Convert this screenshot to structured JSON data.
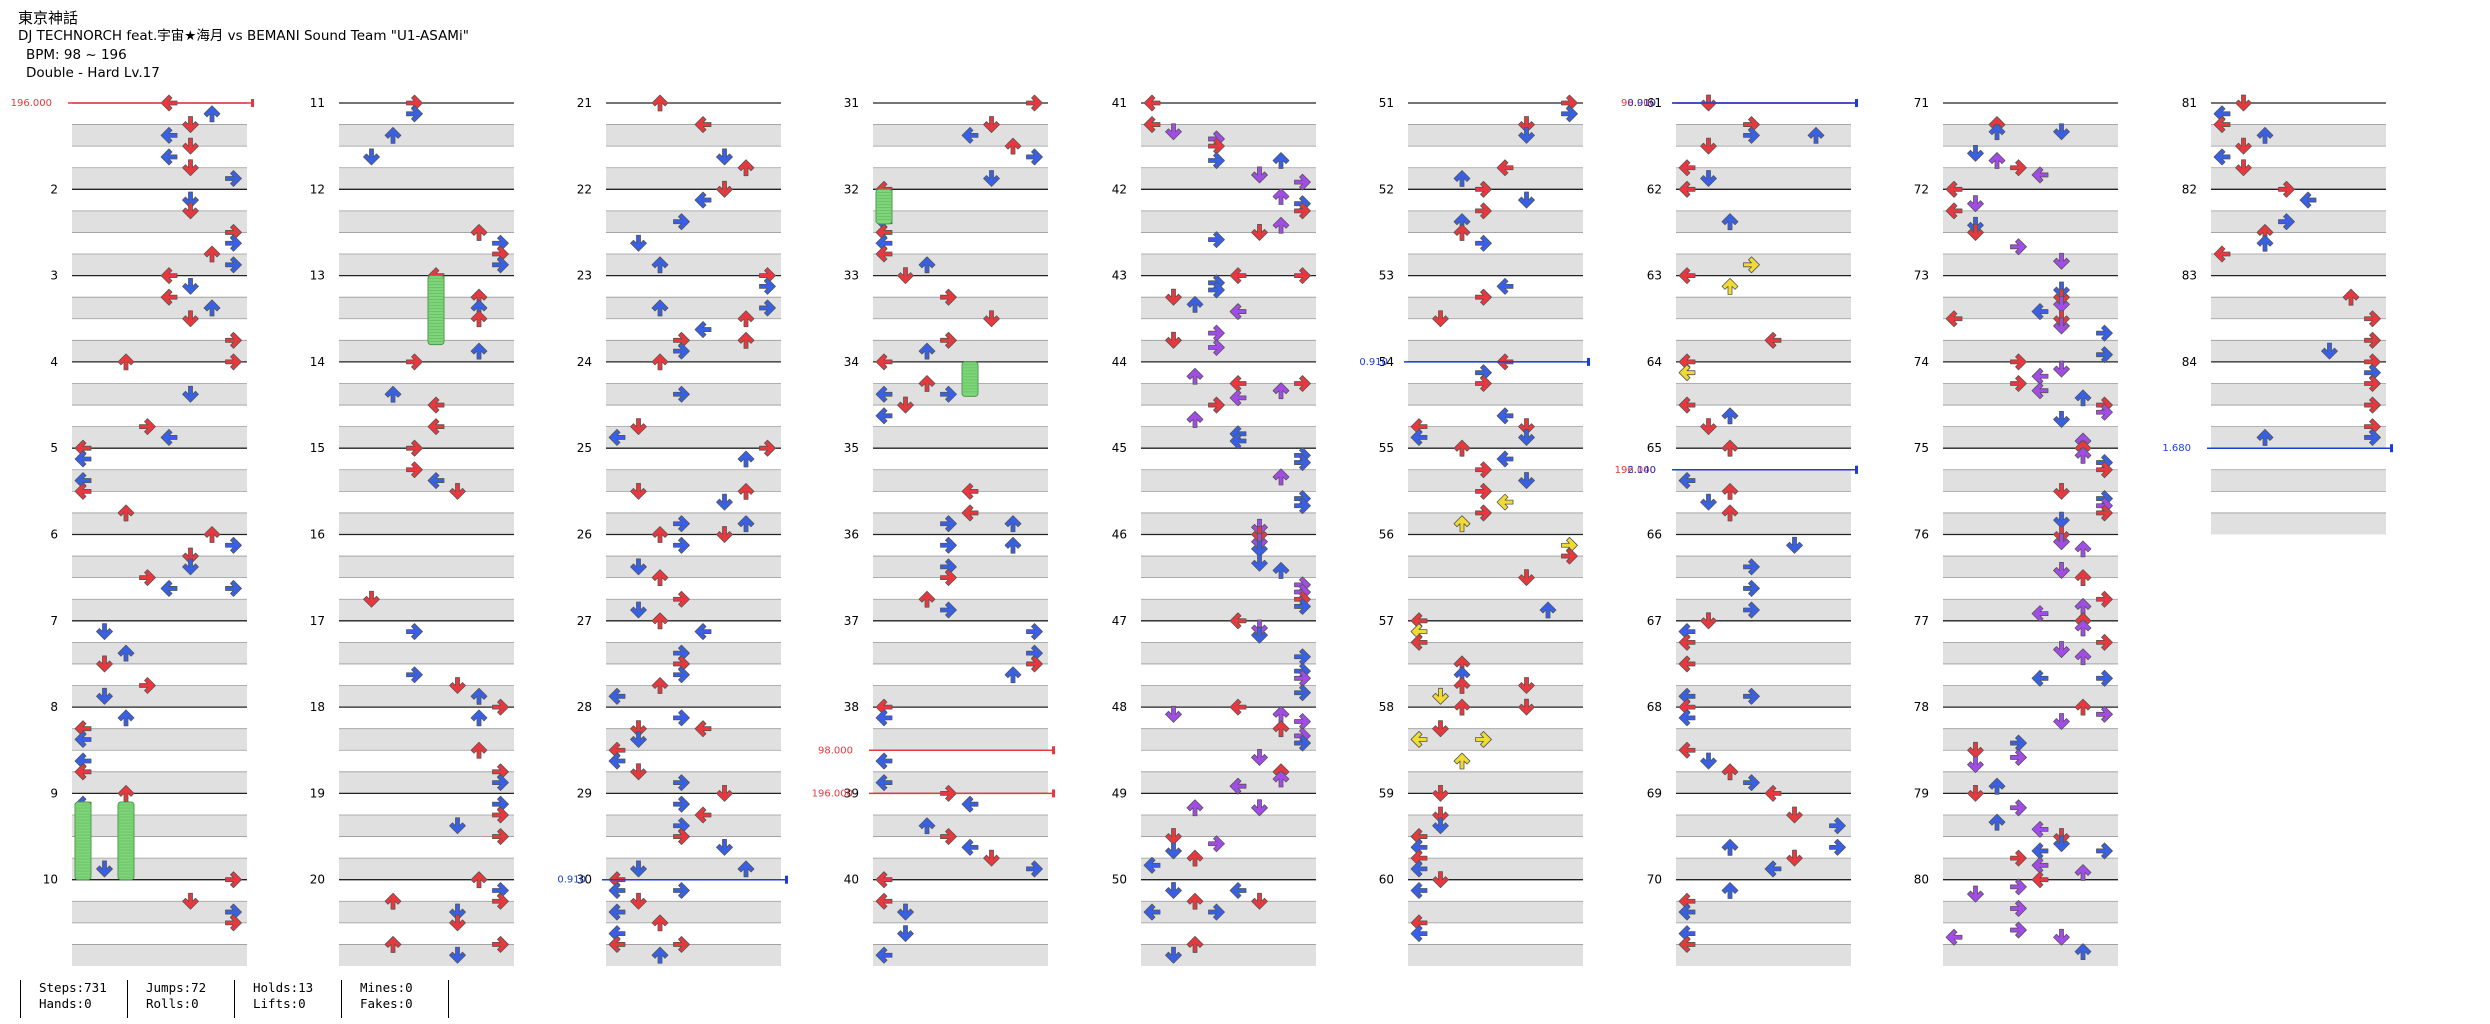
{
  "song": {
    "title": "東京神話",
    "artist": "DJ TECHNORCH feat.宇宙★海月 vs BEMANI Sound Team \"U1-ASAMi\"",
    "bpm": "BPM: 98 ~ 196",
    "difficulty": "Double - Hard  Lv.17"
  },
  "chart": {
    "mode": "dance-double",
    "measures_total": 85,
    "columns": 9,
    "measures_per_column": 10,
    "measure_labels": [
      "2",
      "3",
      "4",
      "5",
      "6",
      "7",
      "8",
      "9",
      "10",
      "11",
      "12",
      "13",
      "14",
      "15",
      "16",
      "17",
      "18",
      "19",
      "20",
      "21",
      "22",
      "23",
      "24",
      "25",
      "26",
      "27",
      "28",
      "29",
      "30",
      "31",
      "32",
      "33",
      "34",
      "35",
      "36",
      "37",
      "38",
      "39",
      "40",
      "41",
      "42",
      "43",
      "44",
      "45",
      "46",
      "47",
      "48",
      "49",
      "50",
      "51",
      "52",
      "53",
      "54",
      "55",
      "56",
      "57",
      "58",
      "59",
      "60",
      "61",
      "62",
      "63",
      "64",
      "65",
      "66",
      "67",
      "68",
      "69",
      "70",
      "71",
      "72",
      "73",
      "74",
      "75",
      "76",
      "77",
      "78",
      "79",
      "80",
      "81",
      "82",
      "83",
      "84"
    ],
    "note_colors": {
      "4th": "#e8383d",
      "8th": "#3760e6",
      "12th": "#a24be6",
      "16th": "#f1db33",
      "freeze": "#7fd67a",
      "other": "#f09a3c"
    },
    "markers": [
      {
        "label": "196.000",
        "type": "bpm",
        "measure": 1
      },
      {
        "label": "0.910",
        "type": "scroll",
        "measure": 30
      },
      {
        "label": "98.000",
        "type": "bpm",
        "measure": 38.5
      },
      {
        "label": "196.000",
        "type": "bpm",
        "measure": 39
      },
      {
        "label": "0.910",
        "type": "scroll",
        "measure": 54
      },
      {
        "label": "98.000",
        "type": "bpm",
        "measure": 61
      },
      {
        "label": "0.910",
        "type": "scroll",
        "measure": 61
      },
      {
        "label": "196.000",
        "type": "bpm",
        "measure": 65.25
      },
      {
        "label": "2.140",
        "type": "scroll",
        "measure": 65.25
      },
      {
        "label": "1.680",
        "type": "scroll",
        "measure": 85
      }
    ]
  },
  "stats": {
    "steps": "Steps:731",
    "jumps": "Jumps:72",
    "holds": "Holds:13",
    "mines": "Mines:0",
    "hands": "Hands:0",
    "rolls": "Rolls:0",
    "lifts": "Lifts:0",
    "fakes": "Fakes:0"
  }
}
